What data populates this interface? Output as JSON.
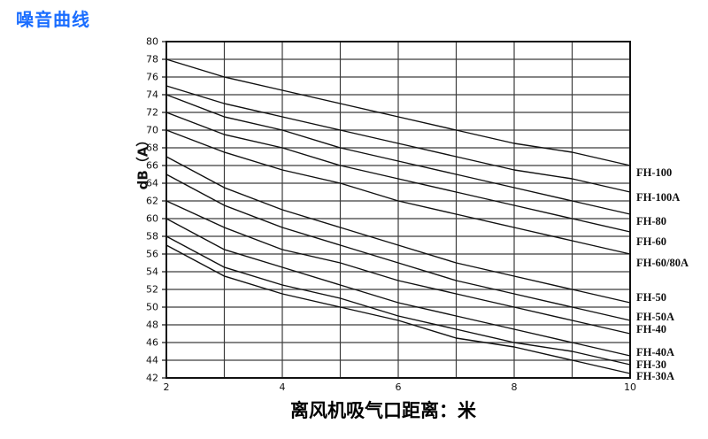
{
  "title": {
    "text": "噪音曲线",
    "color": "#1A6DFF"
  },
  "chart_data": {
    "type": "line",
    "title": "噪音曲线",
    "xlabel": "离风机吸气口距离：米",
    "ylabel": "dB（A）",
    "xlim": [
      2,
      10
    ],
    "ylim": [
      42,
      80
    ],
    "xtick_labels": [
      2,
      4,
      6,
      8,
      10
    ],
    "xgrid_step": 1,
    "ytick_step": 2,
    "grid": true,
    "legend_position": "right-of-plot-at-line-ends",
    "x": [
      2,
      3,
      4,
      5,
      6,
      7,
      8,
      9,
      10
    ],
    "series": [
      {
        "name": "FH-100",
        "values": [
          78,
          76,
          74.5,
          73,
          71.5,
          70,
          68.5,
          67.5,
          66
        ],
        "label_db": 65.2
      },
      {
        "name": "FH-100A",
        "values": [
          75,
          73,
          71.5,
          70,
          68.5,
          67,
          65.5,
          64.5,
          63
        ],
        "label_db": 62.4
      },
      {
        "name": "FH-80",
        "values": [
          74,
          71.5,
          70,
          68,
          66.5,
          65,
          63.5,
          62,
          60.5
        ],
        "label_db": 59.7
      },
      {
        "name": "FH-60",
        "values": [
          72,
          69.5,
          68,
          66,
          64.5,
          63,
          61.5,
          60,
          58.5
        ],
        "label_db": 57.4
      },
      {
        "name": "FH-60/80A",
        "values": [
          70,
          67.5,
          65.5,
          64,
          62,
          60.5,
          59,
          57.5,
          56
        ],
        "label_db": 55.0
      },
      {
        "name": "FH-50",
        "values": [
          67,
          63.5,
          61,
          59,
          57,
          55,
          53.5,
          52,
          50.5
        ],
        "label_db": 51.1
      },
      {
        "name": "FH-50A",
        "values": [
          65,
          61.5,
          59,
          57,
          55,
          53,
          51.5,
          50,
          48.5
        ],
        "label_db": 48.9
      },
      {
        "name": "FH-40",
        "values": [
          62,
          59,
          56.5,
          55,
          53,
          51.5,
          50,
          48.5,
          47
        ],
        "label_db": 47.5
      },
      {
        "name": "FH-40A",
        "values": [
          60,
          56.5,
          54.5,
          52.5,
          50.5,
          49,
          47.5,
          46,
          44.5
        ],
        "label_db": 44.9
      },
      {
        "name": "FH-30",
        "values": [
          58,
          54.5,
          52.5,
          51,
          49,
          47.5,
          46,
          45,
          43.5
        ],
        "label_db": 43.5
      },
      {
        "name": "FH-30A",
        "values": [
          57,
          53.5,
          51.5,
          50,
          48.5,
          46.5,
          45.5,
          44,
          42.5
        ],
        "label_db": 42.2
      }
    ],
    "colors": {
      "line": "#111111",
      "grid": "#3c3c3c",
      "frame": "#111111",
      "text": "#111111"
    }
  }
}
